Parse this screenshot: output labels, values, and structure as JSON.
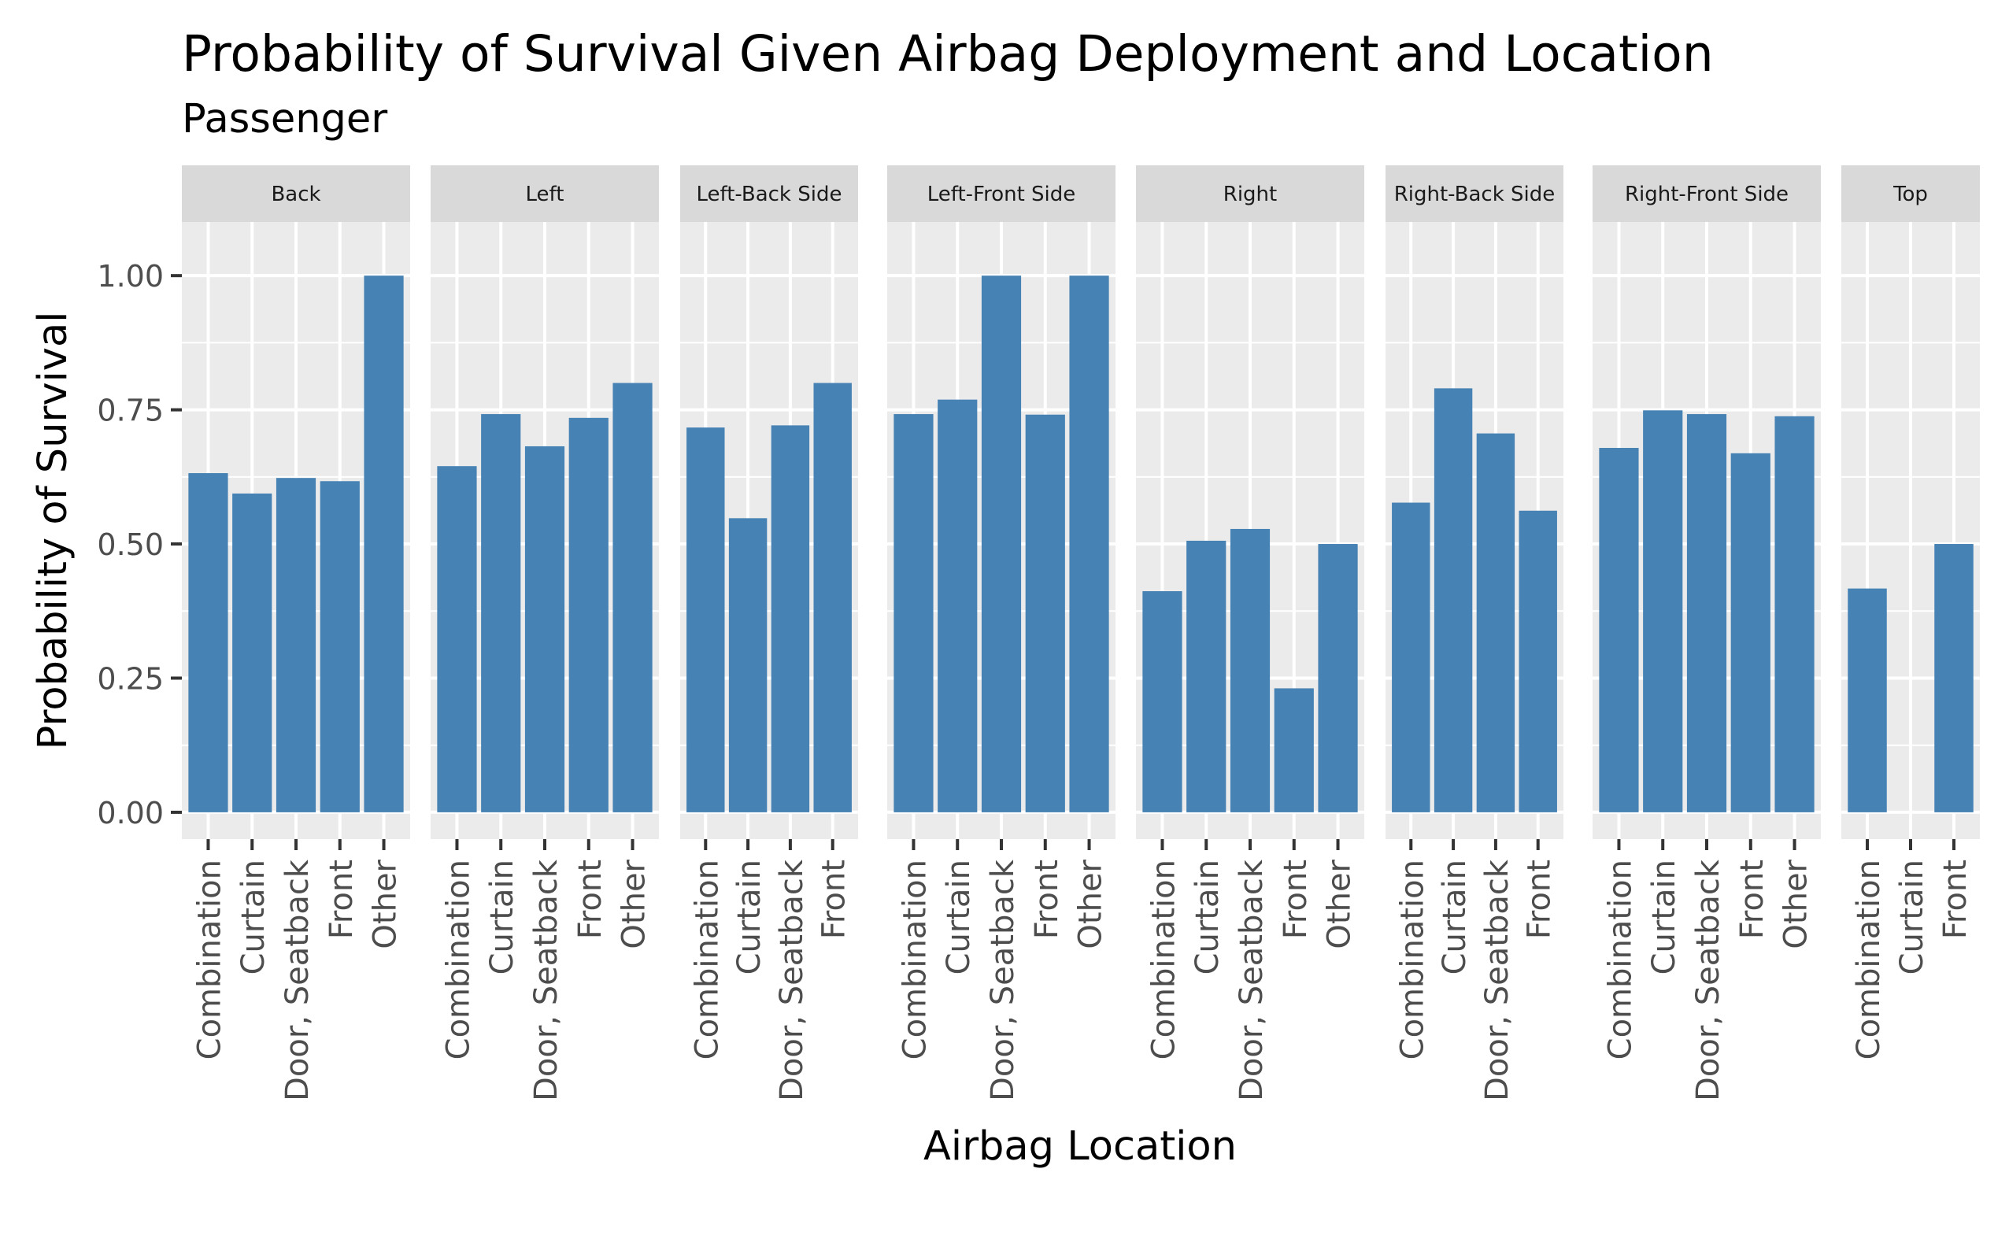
{
  "chart_data": {
    "type": "bar",
    "title": "Probability of Survival Given Airbag Deployment and Location",
    "subtitle": "Passenger",
    "xlabel": "Airbag Location",
    "ylabel": "Probability of Survival",
    "ylim": [
      -0.05,
      1.1
    ],
    "yticks": [
      0.0,
      0.25,
      0.5,
      0.75,
      1.0
    ],
    "ytick_labels": [
      "0.00",
      "0.25",
      "0.50",
      "0.75",
      "1.00"
    ],
    "grid": true,
    "legend": "none",
    "facet_by": "Airbag Deployment",
    "colors": {
      "bar": "#4682b4",
      "panel_background": "#ebebeb",
      "strip_background": "#d9d9d9",
      "grid": "#ffffff",
      "tick_text": "#4d4d4d",
      "axis_title": "#000000"
    },
    "facets": [
      {
        "label": "Back",
        "categories": [
          "Combination",
          "Curtain",
          "Door, Seatback",
          "Front",
          "Other"
        ],
        "values": [
          0.632,
          0.594,
          0.623,
          0.617,
          1.0
        ]
      },
      {
        "label": "Left",
        "categories": [
          "Combination",
          "Curtain",
          "Door, Seatback",
          "Front",
          "Other"
        ],
        "values": [
          0.645,
          0.742,
          0.682,
          0.735,
          0.8
        ]
      },
      {
        "label": "Left-Back Side",
        "categories": [
          "Combination",
          "Curtain",
          "Door, Seatback",
          "Front"
        ],
        "values": [
          0.717,
          0.548,
          0.721,
          0.8
        ]
      },
      {
        "label": "Left-Front Side",
        "categories": [
          "Combination",
          "Curtain",
          "Door, Seatback",
          "Front",
          "Other"
        ],
        "values": [
          0.742,
          0.769,
          1.0,
          0.741,
          1.0
        ]
      },
      {
        "label": "Right",
        "categories": [
          "Combination",
          "Curtain",
          "Door, Seatback",
          "Front",
          "Other"
        ],
        "values": [
          0.412,
          0.506,
          0.528,
          0.231,
          0.5
        ]
      },
      {
        "label": "Right-Back Side",
        "categories": [
          "Combination",
          "Curtain",
          "Door, Seatback",
          "Front"
        ],
        "values": [
          0.577,
          0.79,
          0.706,
          0.562
        ]
      },
      {
        "label": "Right-Front Side",
        "categories": [
          "Combination",
          "Curtain",
          "Door, Seatback",
          "Front",
          "Other"
        ],
        "values": [
          0.679,
          0.749,
          0.742,
          0.669,
          0.738
        ]
      },
      {
        "label": "Top",
        "categories": [
          "Combination",
          "Curtain",
          "Front"
        ],
        "values": [
          0.417,
          0.0,
          0.5
        ]
      }
    ]
  }
}
